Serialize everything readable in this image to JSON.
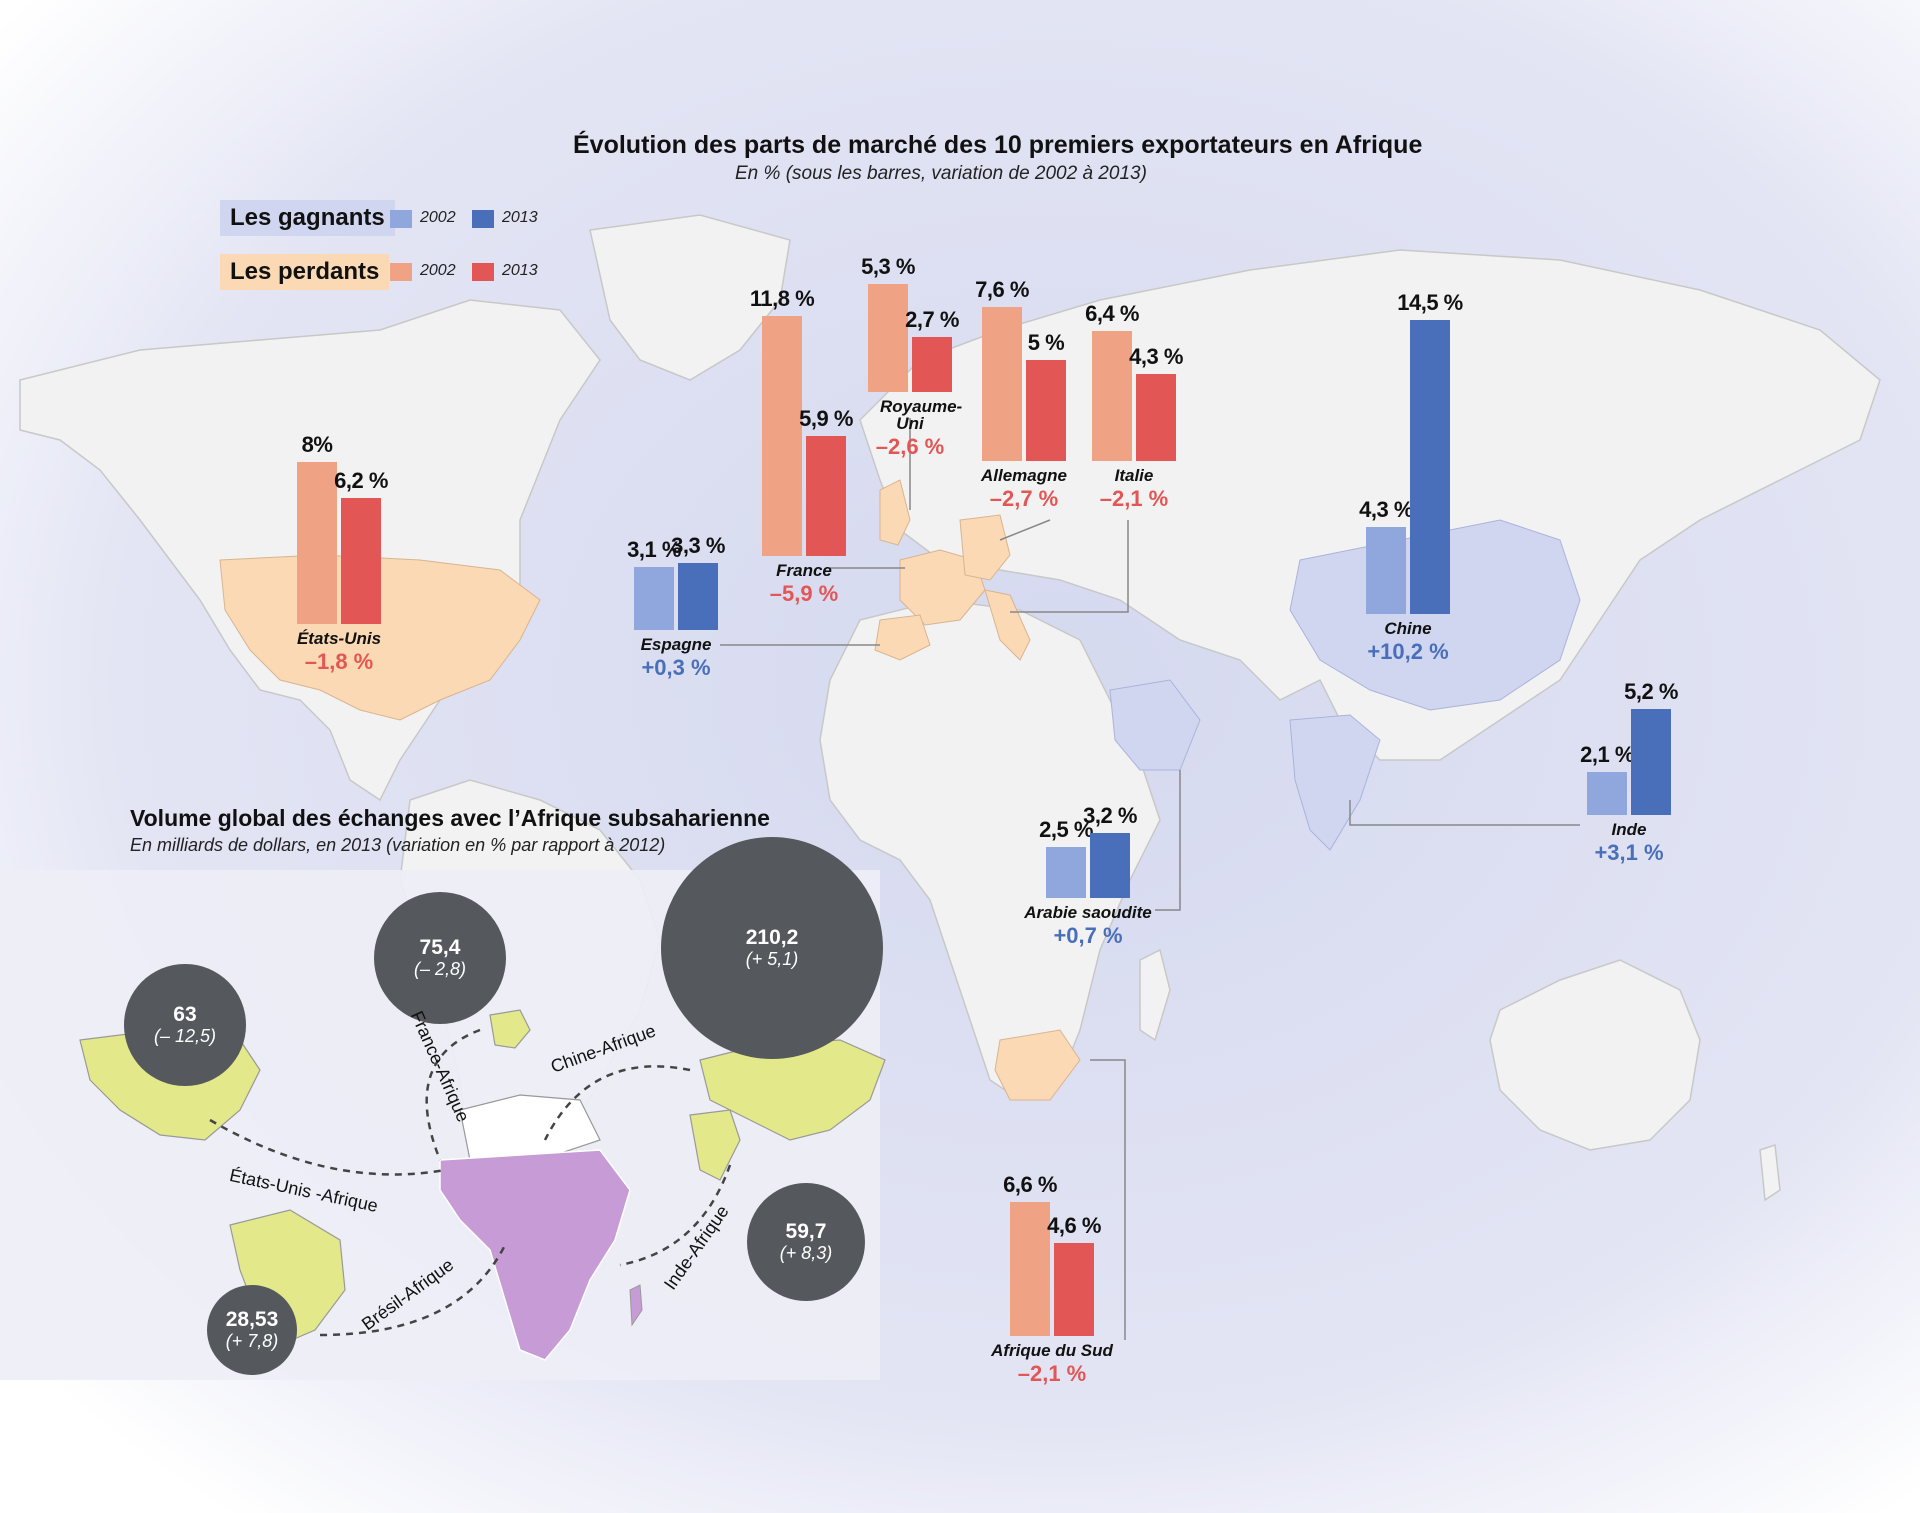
{
  "top_chart": {
    "title": "Évolution des parts de marché des 10 premiers exportateurs en Afrique",
    "subtitle": "En % (sous les barres, variation de 2002 à 2013)"
  },
  "legend": {
    "winners_label": "Les gagnants",
    "losers_label": "Les perdants",
    "year_a": "2002",
    "year_b": "2013"
  },
  "colors": {
    "winner_2002": "#8fa7dc",
    "winner_2013": "#4a6fba",
    "loser_2002": "#f0a284",
    "loser_2013": "#e25656",
    "winner_text": "#4a6fba",
    "loser_text": "#e25656",
    "bubble": "#55595d",
    "winner_land": "#d0d6f0",
    "loser_land": "#fbd9b5",
    "africa_fill": "#c79bd6",
    "partner_fill": "#e3e98a"
  },
  "chart_data": {
    "type": "bar",
    "series": [
      {
        "name": "2002",
        "values": [
          8,
          11.8,
          5.3,
          7.6,
          6.4,
          3.1,
          4.3,
          2.1,
          2.5,
          6.6
        ]
      },
      {
        "name": "2013",
        "values": [
          6.2,
          5.9,
          2.7,
          5,
          4.3,
          3.3,
          14.5,
          5.2,
          3.2,
          4.6
        ]
      }
    ],
    "categories": [
      "États-Unis",
      "France",
      "Royaume-Uni",
      "Allemagne",
      "Italie",
      "Espagne",
      "Chine",
      "Inde",
      "Arabie saoudite",
      "Afrique du Sud"
    ],
    "countries": [
      {
        "name": "États-Unis",
        "group": "loser",
        "v2002": 8,
        "v2013": 6.2,
        "l2002": "8%",
        "l2013": "6,2 %",
        "change": "–1,8 %"
      },
      {
        "name": "France",
        "group": "loser",
        "v2002": 11.8,
        "v2013": 5.9,
        "l2002": "11,8 %",
        "l2013": "5,9 %",
        "change": "–5,9 %"
      },
      {
        "name": "Royaume-Uni",
        "group": "loser",
        "v2002": 5.3,
        "v2013": 2.7,
        "l2002": "5,3 %",
        "l2013": "2,7 %",
        "change": "–2,6 %"
      },
      {
        "name": "Allemagne",
        "group": "loser",
        "v2002": 7.6,
        "v2013": 5,
        "l2002": "7,6 %",
        "l2013": "5 %",
        "change": "–2,7 %"
      },
      {
        "name": "Italie",
        "group": "loser",
        "v2002": 6.4,
        "v2013": 4.3,
        "l2002": "6,4 %",
        "l2013": "4,3 %",
        "change": "–2,1 %"
      },
      {
        "name": "Espagne",
        "group": "winner",
        "v2002": 3.1,
        "v2013": 3.3,
        "l2002": "3,1 %",
        "l2013": "3,3 %",
        "change": "+0,3 %"
      },
      {
        "name": "Chine",
        "group": "winner",
        "v2002": 4.3,
        "v2013": 14.5,
        "l2002": "4,3 %",
        "l2013": "14,5 %",
        "change": "+10,2 %"
      },
      {
        "name": "Inde",
        "group": "winner",
        "v2002": 2.1,
        "v2013": 5.2,
        "l2002": "2,1 %",
        "l2013": "5,2 %",
        "change": "+3,1 %"
      },
      {
        "name": "Arabie saoudite",
        "group": "winner",
        "v2002": 2.5,
        "v2013": 3.2,
        "l2002": "2,5 %",
        "l2013": "3,2 %",
        "change": "+0,7 %"
      },
      {
        "name": "Afrique du Sud",
        "group": "loser",
        "v2002": 6.6,
        "v2013": 4.6,
        "l2002": "6,6 %",
        "l2013": "4,6 %",
        "change": "–2,1 %"
      }
    ]
  },
  "trade_chart": {
    "title": "Volume global des échanges avec l’Afrique subsaharienne",
    "subtitle": "En milliards de dollars, en 2013 (variation en % par rapport à 2012)",
    "bubbles": [
      {
        "name": "Chine",
        "value": 210.2,
        "value_label": "210,2",
        "change": "(+ 5,1)"
      },
      {
        "name": "France",
        "value": 75.4,
        "value_label": "75,4",
        "change": "(– 2,8)"
      },
      {
        "name": "États-Unis",
        "value": 63,
        "value_label": "63",
        "change": "(– 12,5)"
      },
      {
        "name": "Inde",
        "value": 59.7,
        "value_label": "59,7",
        "change": "(+ 8,3)"
      },
      {
        "name": "Brésil",
        "value": 28.53,
        "value_label": "28,53",
        "change": "(+ 7,8)"
      }
    ],
    "routes": {
      "france": "France-Afrique",
      "chine": "Chine-Afrique",
      "usa": "États-Unis -Afrique",
      "bresil": "Brésil-Afrique",
      "inde": "Inde-Afrique"
    }
  }
}
